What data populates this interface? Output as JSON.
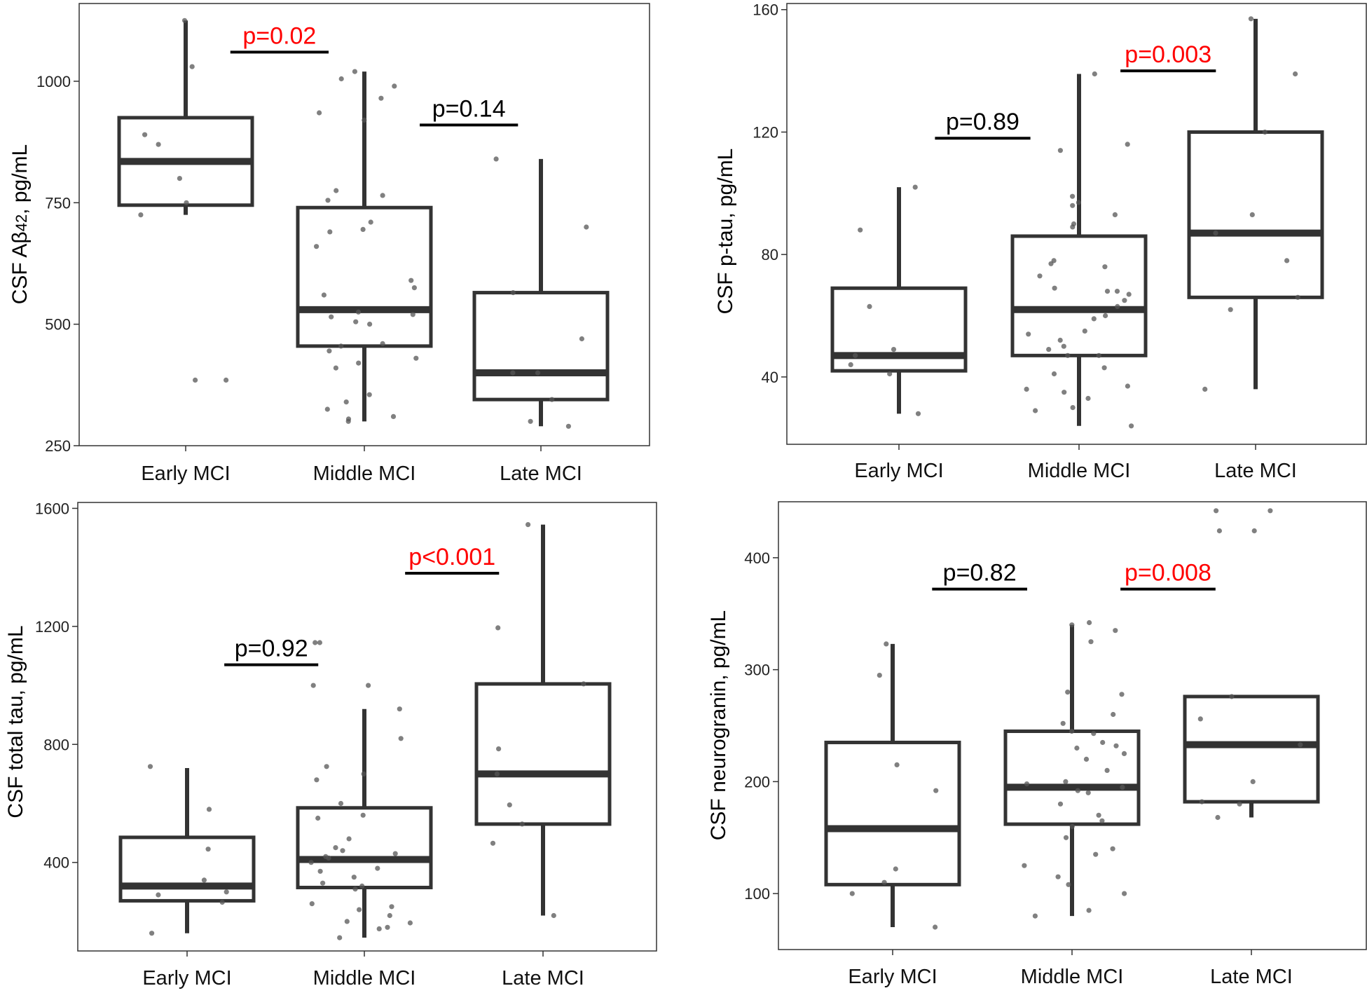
{
  "colors": {
    "box": "#333333",
    "point": "#555555",
    "sig": "#ff0000",
    "nonsig": "#000000",
    "frame": "#333333"
  },
  "chart_data": [
    {
      "type": "boxplot",
      "ylabel_main": "CSF A",
      "ylabel_greek": "β",
      "ylabel_sub": "42",
      "ylabel_tail": ", pg/mL",
      "categories": [
        "Early MCI",
        "Middle MCI",
        "Late MCI"
      ],
      "yticks": [
        "250",
        "500",
        "750",
        "1000"
      ],
      "ylim": [
        250,
        1160
      ],
      "boxes": [
        {
          "q1": 745,
          "median": 835,
          "q3": 925,
          "whisker_low": 725,
          "whisker_high": 1125
        },
        {
          "q1": 455,
          "median": 530,
          "q3": 740,
          "whisker_low": 300,
          "whisker_high": 1020
        },
        {
          "q1": 345,
          "median": 400,
          "q3": 565,
          "whisker_low": 290,
          "whisker_high": 840
        }
      ],
      "points": [
        [
          1125,
          1030,
          890,
          870,
          800,
          750,
          725,
          385,
          385
        ],
        [
          1020,
          1005,
          990,
          965,
          935,
          920,
          775,
          765,
          755,
          710,
          695,
          690,
          660,
          590,
          575,
          560,
          525,
          520,
          515,
          505,
          500,
          460,
          455,
          445,
          430,
          420,
          410,
          355,
          340,
          325,
          310,
          305,
          300
        ],
        [
          840,
          700,
          565,
          470,
          400,
          400,
          345,
          300,
          290
        ]
      ],
      "comparisons": [
        {
          "label": "p=0.02",
          "significant": true,
          "y": 1060,
          "from": 0.25,
          "to": 0.8
        },
        {
          "label": "p=0.14",
          "significant": false,
          "y": 910,
          "from": 1.31,
          "to": 1.86
        }
      ]
    },
    {
      "type": "boxplot",
      "ylabel_main": "CSF p-tau, pg/mL",
      "categories": [
        "Early MCI",
        "Middle MCI",
        "Late MCI"
      ],
      "yticks": [
        "40",
        "80",
        "120",
        "160"
      ],
      "ylim": [
        18,
        162
      ],
      "boxes": [
        {
          "q1": 42,
          "median": 47,
          "q3": 69,
          "whisker_low": 28,
          "whisker_high": 102
        },
        {
          "q1": 47,
          "median": 62,
          "q3": 86,
          "whisker_low": 24,
          "whisker_high": 139
        },
        {
          "q1": 66,
          "median": 87,
          "q3": 120,
          "whisker_low": 36,
          "whisker_high": 157
        }
      ],
      "points": [
        [
          102,
          88,
          63,
          49,
          47,
          44,
          41,
          28
        ],
        [
          139,
          116,
          114,
          99,
          97,
          96,
          93,
          90,
          89,
          78,
          77,
          76,
          73,
          69,
          68,
          68,
          67,
          65,
          63,
          60,
          59,
          55,
          54,
          52,
          50,
          49,
          47,
          47,
          43,
          41,
          37,
          36,
          35,
          33,
          30,
          29,
          24
        ],
        [
          157,
          139,
          120,
          93,
          87,
          78,
          66,
          62,
          36
        ]
      ],
      "comparisons": [
        {
          "label": "p=0.89",
          "significant": false,
          "y": 118,
          "from": 0.2,
          "to": 0.73
        },
        {
          "label": "p=0.003",
          "significant": true,
          "y": 140,
          "from": 1.23,
          "to": 1.76
        }
      ]
    },
    {
      "type": "boxplot",
      "ylabel_main": "CSF total tau, pg/mL",
      "categories": [
        "Early MCI",
        "Middle MCI",
        "Late MCI"
      ],
      "yticks": [
        "400",
        "800",
        "1200",
        "1600"
      ],
      "ylim": [
        100,
        1620
      ],
      "boxes": [
        {
          "q1": 270,
          "median": 320,
          "q3": 485,
          "whisker_low": 160,
          "whisker_high": 720
        },
        {
          "q1": 315,
          "median": 410,
          "q3": 585,
          "whisker_low": 145,
          "whisker_high": 920
        },
        {
          "q1": 530,
          "median": 700,
          "q3": 1005,
          "whisker_low": 220,
          "whisker_high": 1545
        }
      ],
      "points": [
        [
          725,
          580,
          445,
          340,
          300,
          290,
          265,
          160
        ],
        [
          1145,
          1145,
          1000,
          1000,
          920,
          820,
          725,
          700,
          680,
          600,
          560,
          550,
          480,
          450,
          440,
          430,
          420,
          415,
          400,
          380,
          370,
          350,
          330,
          320,
          310,
          260,
          250,
          240,
          220,
          200,
          195,
          180,
          175,
          145
        ],
        [
          1545,
          1195,
          1005,
          785,
          700,
          595,
          530,
          465,
          220
        ]
      ],
      "comparisons": [
        {
          "label": "p=0.92",
          "significant": false,
          "y": 1070,
          "from": 0.21,
          "to": 0.74
        },
        {
          "label": "p<0.001",
          "significant": true,
          "y": 1380,
          "from": 1.23,
          "to": 1.76
        }
      ]
    },
    {
      "type": "boxplot",
      "ylabel_main": "CSF neurogranin, pg/mL",
      "categories": [
        "Early MCI",
        "Middle MCI",
        "Late MCI"
      ],
      "yticks": [
        "100",
        "200",
        "300",
        "400"
      ],
      "ylim": [
        50,
        450
      ],
      "boxes": [
        {
          "q1": 108,
          "median": 158,
          "q3": 235,
          "whisker_low": 70,
          "whisker_high": 323
        },
        {
          "q1": 162,
          "median": 195,
          "q3": 245,
          "whisker_low": 80,
          "whisker_high": 340
        },
        {
          "q1": 182,
          "median": 233,
          "q3": 276,
          "whisker_low": 168,
          "whisker_high": 276
        }
      ],
      "points": [
        [
          323,
          295,
          215,
          192,
          122,
          110,
          100,
          70
        ],
        [
          342,
          340,
          335,
          325,
          280,
          278,
          260,
          252,
          245,
          243,
          235,
          232,
          230,
          225,
          220,
          210,
          200,
          198,
          195,
          192,
          190,
          180,
          170,
          165,
          160,
          150,
          140,
          135,
          125,
          115,
          108,
          100,
          85,
          80
        ],
        [
          442,
          442,
          424,
          424,
          276,
          256,
          233,
          200,
          182,
          180,
          168
        ]
      ],
      "comparisons": [
        {
          "label": "p=0.82",
          "significant": false,
          "y": 372,
          "from": 0.22,
          "to": 0.75
        },
        {
          "label": "p=0.008",
          "significant": true,
          "y": 372,
          "from": 1.27,
          "to": 1.8
        }
      ]
    }
  ]
}
